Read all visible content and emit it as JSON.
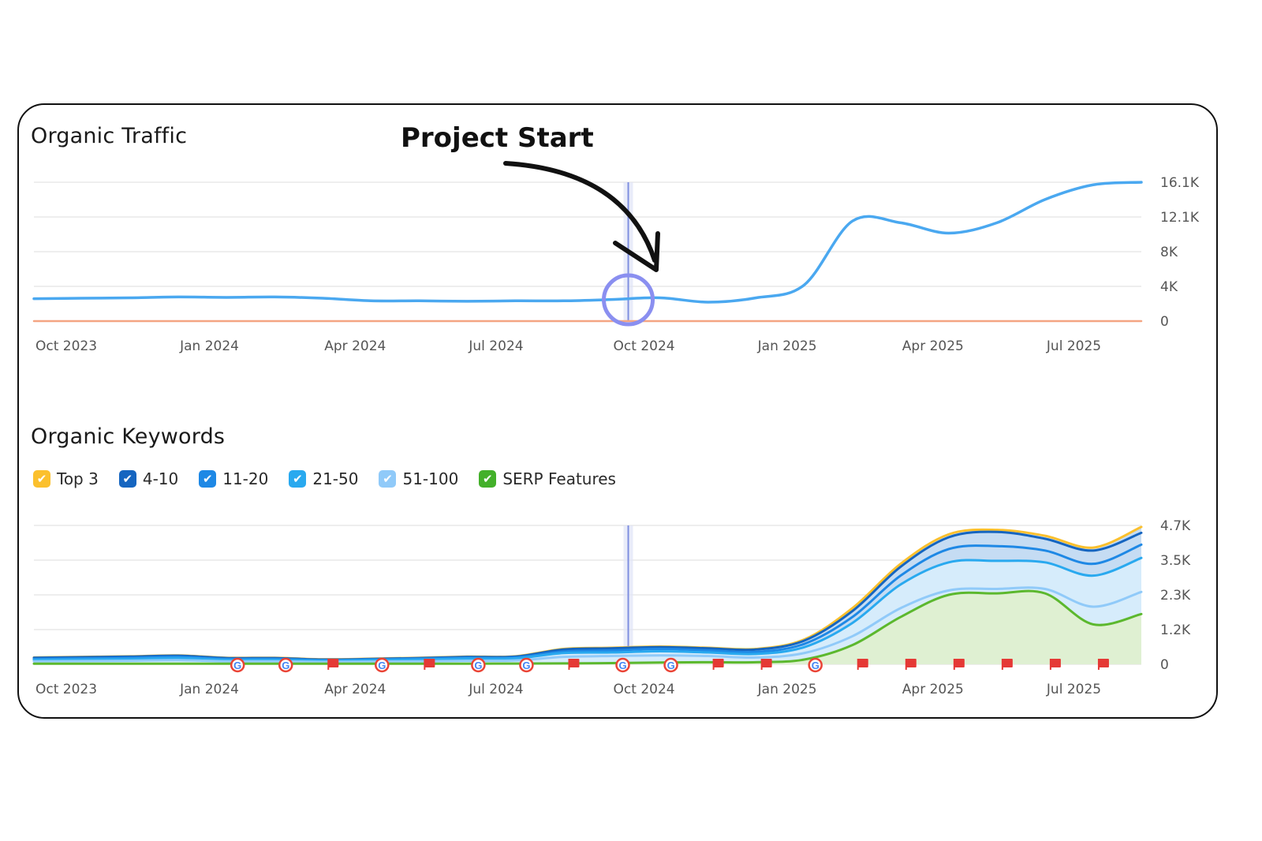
{
  "annotation": "Project Start",
  "legend": [
    {
      "label": "Top 3",
      "color": "#fbc02d"
    },
    {
      "label": "4-10",
      "color": "#1565c0"
    },
    {
      "label": "11-20",
      "color": "#1e88e5"
    },
    {
      "label": "21-50",
      "color": "#29a9ef"
    },
    {
      "label": "51-100",
      "color": "#90caf9"
    },
    {
      "label": "SERP Features",
      "color": "#43b02a"
    }
  ],
  "chart_data": [
    {
      "type": "line",
      "title": "Organic Traffic",
      "x_ticks": [
        "Oct 2023",
        "Jan 2024",
        "Apr 2024",
        "Jul 2024",
        "Oct 2024",
        "Jan 2025",
        "Apr 2025",
        "Jul 2025"
      ],
      "y_ticks": [
        "0",
        "4K",
        "8K",
        "12.1K",
        "16.1K"
      ],
      "ylim": [
        0,
        16100
      ],
      "grid": true,
      "marker_date": "Oct 2024",
      "series": [
        {
          "color": "#4aa8f0",
          "points": [
            [
              "Oct 2023",
              2600
            ],
            [
              "Nov 2023",
              2650
            ],
            [
              "Dec 2023",
              2700
            ],
            [
              "Jan 2024",
              2800
            ],
            [
              "Feb 2024",
              2750
            ],
            [
              "Mar 2024",
              2800
            ],
            [
              "Apr 2024",
              2650
            ],
            [
              "May 2024",
              2350
            ],
            [
              "Jun 2024",
              2350
            ],
            [
              "Jul 2024",
              2300
            ],
            [
              "Aug 2024",
              2350
            ],
            [
              "Sep 2024",
              2350
            ],
            [
              "Oct 2024",
              2500
            ],
            [
              "Nov 2024",
              2700
            ],
            [
              "Dec 2024",
              2200
            ],
            [
              "Jan 2025",
              2700
            ],
            [
              "Feb 2025",
              4200
            ],
            [
              "Mar 2025",
              11600
            ],
            [
              "Apr 2025",
              11400
            ],
            [
              "May 2025",
              10200
            ],
            [
              "Jun 2025",
              11400
            ],
            [
              "Jul 2025",
              14100
            ],
            [
              "Aug 2025",
              15800
            ],
            [
              "Sep 2025",
              16100
            ]
          ]
        },
        {
          "color": "#f4a582",
          "points": [
            [
              "Oct 2023",
              0
            ],
            [
              "Sep 2025",
              0
            ]
          ]
        }
      ]
    },
    {
      "type": "area",
      "title": "Organic Keywords",
      "x_ticks": [
        "Oct 2023",
        "Jan 2024",
        "Apr 2024",
        "Jul 2024",
        "Oct 2024",
        "Jan 2025",
        "Apr 2025",
        "Jul 2025"
      ],
      "y_ticks": [
        "0",
        "1.2K",
        "2.3K",
        "3.5K",
        "4.7K"
      ],
      "ylim": [
        0,
        4700
      ],
      "grid": true,
      "marker_date": "Oct 2024",
      "categories": [
        "Oct 2023",
        "Nov 2023",
        "Dec 2023",
        "Jan 2024",
        "Feb 2024",
        "Mar 2024",
        "Apr 2024",
        "May 2024",
        "Jun 2024",
        "Jul 2024",
        "Aug 2024",
        "Sep 2024",
        "Oct 2024",
        "Nov 2024",
        "Dec 2024",
        "Jan 2025",
        "Feb 2025",
        "Mar 2025",
        "Apr 2025",
        "May 2025",
        "Jun 2025",
        "Jul 2025",
        "Aug 2025",
        "Sep 2025"
      ],
      "series": [
        {
          "name": "Top 3",
          "color": "#fbc02d",
          "values": [
            230,
            250,
            270,
            300,
            220,
            220,
            170,
            190,
            220,
            260,
            270,
            520,
            560,
            600,
            560,
            520,
            840,
            1900,
            3400,
            4400,
            4550,
            4350,
            3950,
            4650
          ]
        },
        {
          "name": "4-10",
          "color": "#1565c0",
          "values": [
            220,
            240,
            260,
            290,
            210,
            210,
            160,
            180,
            210,
            250,
            260,
            500,
            540,
            580,
            540,
            500,
            800,
            1800,
            3300,
            4300,
            4480,
            4250,
            3850,
            4450
          ]
        },
        {
          "name": "11-20",
          "color": "#1e88e5",
          "values": [
            180,
            200,
            220,
            250,
            180,
            180,
            140,
            160,
            190,
            220,
            230,
            430,
            470,
            520,
            470,
            420,
            690,
            1600,
            3000,
            3900,
            4000,
            3850,
            3400,
            4050
          ]
        },
        {
          "name": "21-50",
          "color": "#29a9ef",
          "values": [
            150,
            165,
            180,
            210,
            150,
            150,
            120,
            140,
            160,
            190,
            200,
            380,
            400,
            440,
            400,
            350,
            580,
            1400,
            2700,
            3450,
            3500,
            3450,
            3000,
            3600
          ]
        },
        {
          "name": "51-100",
          "color": "#90caf9",
          "values": [
            100,
            110,
            120,
            140,
            100,
            100,
            80,
            90,
            100,
            120,
            130,
            250,
            280,
            300,
            280,
            230,
            380,
            950,
            1900,
            2500,
            2550,
            2550,
            1950,
            2450
          ]
        },
        {
          "name": "SERP Features",
          "color": "#5cb82e",
          "values": [
            20,
            20,
            20,
            20,
            20,
            20,
            20,
            20,
            20,
            20,
            25,
            30,
            40,
            60,
            70,
            70,
            160,
            650,
            1600,
            2350,
            2400,
            2400,
            1350,
            1700
          ]
        }
      ],
      "event_markers": [
        {
          "x": "Feb 2024",
          "type": "google-icon"
        },
        {
          "x": "Mar 2024",
          "type": "google-icon"
        },
        {
          "x": "Apr 2024",
          "type": "red-flag-icon"
        },
        {
          "x": "May 2024",
          "type": "google-icon"
        },
        {
          "x": "Jun 2024",
          "type": "red-flag-icon"
        },
        {
          "x": "Jul 2024",
          "type": "google-icon"
        },
        {
          "x": "Aug 2024",
          "type": "google-icon"
        },
        {
          "x": "Sep 2024",
          "type": "red-flag-icon"
        },
        {
          "x": "Oct 2024",
          "type": "google-icon"
        },
        {
          "x": "Nov 2024",
          "type": "google-icon"
        },
        {
          "x": "Dec 2024",
          "type": "red-flag-icon"
        },
        {
          "x": "Jan 2025",
          "type": "red-flag-icon"
        },
        {
          "x": "Feb 2025",
          "type": "google-icon"
        },
        {
          "x": "Mar 2025",
          "type": "red-flag-icon"
        },
        {
          "x": "Apr 2025",
          "type": "red-flag-icon"
        },
        {
          "x": "May 2025",
          "type": "red-flag-icon"
        },
        {
          "x": "Jun 2025",
          "type": "red-flag-icon"
        },
        {
          "x": "Jul 2025",
          "type": "red-flag-icon"
        },
        {
          "x": "Aug 2025",
          "type": "red-flag-icon"
        }
      ]
    }
  ]
}
